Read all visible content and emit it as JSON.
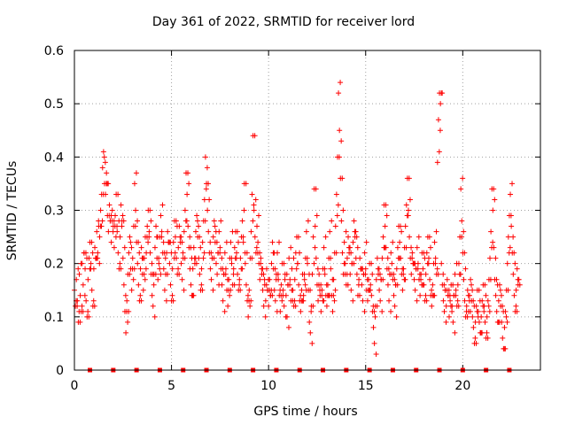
{
  "chart_data": {
    "type": "scatter",
    "title": "Day 361 of 2022, SRMTID for receiver lord",
    "xlabel": "GPS time / hours",
    "ylabel": "SRMTID / TECUs",
    "xlim": [
      0,
      24
    ],
    "ylim": [
      0,
      0.6
    ],
    "xticks": [
      0,
      5,
      10,
      15,
      20
    ],
    "xtick_labels": [
      "0",
      "5",
      "10",
      "15",
      "20"
    ],
    "yticks": [
      0,
      0.1,
      0.2,
      0.3,
      0.4,
      0.5,
      0.6
    ],
    "ytick_labels": [
      "0",
      "0.1",
      "0.2",
      "0.3",
      "0.4",
      "0.5",
      "0.6"
    ],
    "grid": true,
    "marker": "+",
    "color": "#ff0000",
    "zero_markers_x": [
      0.8,
      2.0,
      3.2,
      4.4,
      5.6,
      6.8,
      8.0,
      9.2,
      10.4,
      11.6,
      12.8,
      14.0,
      15.2,
      16.4,
      17.6,
      18.8,
      20.0,
      21.2,
      22.4
    ],
    "series": [
      {
        "name": "SRMTID",
        "x": [
          0.0,
          0.05,
          0.1,
          0.15,
          0.2,
          0.25,
          0.3,
          0.35,
          0.4,
          0.45,
          0.5,
          0.55,
          0.6,
          0.65,
          0.7,
          0.75,
          0.8,
          0.85,
          0.9,
          0.95,
          1.0,
          1.05,
          1.1,
          1.15,
          1.2,
          1.25,
          1.3,
          1.35,
          1.4,
          1.45,
          1.5,
          1.55,
          1.6,
          1.65,
          1.7,
          1.75,
          1.8,
          1.85,
          1.9,
          1.95,
          2.0,
          2.05,
          2.1,
          2.15,
          2.2,
          2.25,
          2.3,
          2.35,
          2.4,
          2.45,
          2.5,
          2.55,
          2.6,
          2.65,
          2.7,
          2.75,
          2.8,
          2.85,
          2.9,
          2.95,
          3.0,
          3.05,
          3.1,
          3.15,
          3.2,
          3.25,
          3.3,
          3.35,
          3.4,
          3.45,
          3.5,
          3.55,
          3.6,
          3.65,
          3.7,
          3.75,
          3.8,
          3.85,
          3.9,
          3.95,
          4.0,
          4.05,
          4.1,
          4.15,
          4.2,
          4.25,
          4.3,
          4.35,
          4.4,
          4.45,
          4.5,
          4.55,
          4.6,
          4.65,
          4.7,
          4.75,
          4.8,
          4.85,
          4.9,
          4.95,
          5.0,
          5.05,
          5.1,
          5.15,
          5.2,
          5.25,
          5.3,
          5.35,
          5.4,
          5.45,
          5.5,
          5.55,
          5.6,
          5.65,
          5.7,
          5.75,
          5.8,
          5.85,
          5.9,
          5.95,
          6.0,
          6.05,
          6.1,
          6.15,
          6.2,
          6.25,
          6.3,
          6.35,
          6.4,
          6.45,
          6.5,
          6.55,
          6.6,
          6.65,
          6.7,
          6.75,
          6.8,
          6.85,
          6.9,
          6.95,
          7.0,
          7.05,
          7.1,
          7.15,
          7.2,
          7.25,
          7.3,
          7.35,
          7.4,
          7.45,
          7.5,
          7.55,
          7.6,
          7.65,
          7.7,
          7.75,
          7.8,
          7.85,
          7.9,
          7.95,
          8.0,
          8.05,
          8.1,
          8.15,
          8.2,
          8.25,
          8.3,
          8.35,
          8.4,
          8.45,
          8.5,
          8.55,
          8.6,
          8.65,
          8.7,
          8.75,
          8.8,
          8.85,
          8.9,
          8.95,
          9.0,
          9.05,
          9.1,
          9.15,
          9.2,
          9.25,
          9.3,
          9.35,
          9.4,
          9.45,
          9.5,
          9.55,
          9.6,
          9.65,
          9.7,
          9.75,
          9.8,
          9.85,
          9.9,
          9.95,
          10.0,
          10.05,
          10.1,
          10.15,
          10.2,
          10.25,
          10.3,
          10.35,
          10.4,
          10.45,
          10.5,
          10.55,
          10.6,
          10.65,
          10.7,
          10.75,
          10.8,
          10.85,
          10.9,
          10.95,
          11.0,
          11.05,
          11.1,
          11.15,
          11.2,
          11.25,
          11.3,
          11.35,
          11.4,
          11.45,
          11.5,
          11.55,
          11.6,
          11.65,
          11.7,
          11.75,
          11.8,
          11.85,
          11.9,
          11.95,
          12.0,
          12.05,
          12.1,
          12.15,
          12.2,
          12.25,
          12.3,
          12.35,
          12.4,
          12.45,
          12.5,
          12.55,
          12.6,
          12.65,
          12.7,
          12.75,
          12.8,
          12.85,
          12.9,
          12.95,
          13.0,
          13.05,
          13.1,
          13.15,
          13.2,
          13.25,
          13.3,
          13.35,
          13.4,
          13.45,
          13.5,
          13.55,
          13.6,
          13.65,
          13.7,
          13.75,
          13.8,
          13.85,
          13.9,
          13.95,
          14.0,
          14.05,
          14.1,
          14.15,
          14.2,
          14.25,
          14.3,
          14.35,
          14.4,
          14.45,
          14.5,
          14.55,
          14.6,
          14.65,
          14.7,
          14.75,
          14.8,
          14.85,
          14.9,
          14.95,
          15.0,
          15.05,
          15.1,
          15.15,
          15.2,
          15.25,
          15.3,
          15.35,
          15.4,
          15.45,
          15.5,
          15.55,
          15.6,
          15.65,
          15.7,
          15.75,
          15.8,
          15.85,
          15.9,
          15.95,
          16.0,
          16.05,
          16.1,
          16.15,
          16.2,
          16.25,
          16.3,
          16.35,
          16.4,
          16.45,
          16.5,
          16.55,
          16.6,
          16.65,
          16.7,
          16.75,
          16.8,
          16.85,
          16.9,
          16.95,
          17.0,
          17.05,
          17.1,
          17.15,
          17.2,
          17.25,
          17.3,
          17.35,
          17.4,
          17.45,
          17.5,
          17.55,
          17.6,
          17.65,
          17.7,
          17.75,
          17.8,
          17.85,
          17.9,
          17.95,
          18.0,
          18.05,
          18.1,
          18.15,
          18.2,
          18.25,
          18.3,
          18.35,
          18.4,
          18.45,
          18.5,
          18.55,
          18.6,
          18.65,
          18.7,
          18.75,
          18.8,
          18.85,
          18.9,
          18.95,
          19.0,
          19.05,
          19.1,
          19.15,
          19.2,
          19.25,
          19.3,
          19.35,
          19.4,
          19.45,
          19.5,
          19.55,
          19.6,
          19.65,
          19.7,
          19.75,
          19.8,
          19.85,
          19.9,
          19.95,
          20.0,
          20.05,
          20.1,
          20.15,
          20.2,
          20.25,
          20.3,
          20.35,
          20.4,
          20.45,
          20.5,
          20.55,
          20.6,
          20.65,
          20.7,
          20.75,
          20.8,
          20.85,
          20.9,
          20.95,
          21.0,
          21.05,
          21.1,
          21.15,
          21.2,
          21.25,
          21.3,
          21.35,
          21.4,
          21.45,
          21.5,
          21.55,
          21.6,
          21.65,
          21.7,
          21.75,
          21.8,
          21.85,
          21.9,
          21.95,
          22.0,
          22.05,
          22.1,
          22.15,
          22.2,
          22.25,
          22.3,
          22.35,
          22.4,
          22.45,
          22.5,
          22.55,
          22.6,
          22.65,
          22.7,
          22.75,
          22.8,
          22.85
        ],
        "y": [
          0.15,
          0.12,
          0.17,
          0.13,
          0.09,
          0.18,
          0.14,
          0.11,
          0.2,
          0.16,
          0.22,
          0.19,
          0.13,
          0.1,
          0.17,
          0.21,
          0.24,
          0.2,
          0.15,
          0.12,
          0.19,
          0.23,
          0.21,
          0.26,
          0.22,
          0.27,
          0.25,
          0.3,
          0.33,
          0.38,
          0.41,
          0.35,
          0.33,
          0.37,
          0.29,
          0.26,
          0.31,
          0.28,
          0.24,
          0.3,
          0.27,
          0.23,
          0.29,
          0.33,
          0.26,
          0.22,
          0.19,
          0.25,
          0.31,
          0.28,
          0.21,
          0.16,
          0.11,
          0.07,
          0.13,
          0.18,
          0.22,
          0.25,
          0.19,
          0.15,
          0.21,
          0.27,
          0.35,
          0.3,
          0.24,
          0.2,
          0.16,
          0.13,
          0.19,
          0.23,
          0.18,
          0.15,
          0.21,
          0.25,
          0.22,
          0.27,
          0.3,
          0.26,
          0.22,
          0.18,
          0.14,
          0.12,
          0.18,
          0.23,
          0.27,
          0.21,
          0.17,
          0.2,
          0.25,
          0.29,
          0.26,
          0.22,
          0.19,
          0.15,
          0.18,
          0.22,
          0.26,
          0.24,
          0.2,
          0.16,
          0.13,
          0.19,
          0.24,
          0.28,
          0.25,
          0.21,
          0.18,
          0.23,
          0.27,
          0.24,
          0.2,
          0.17,
          0.21,
          0.26,
          0.3,
          0.37,
          0.33,
          0.27,
          0.23,
          0.19,
          0.16,
          0.14,
          0.19,
          0.23,
          0.2,
          0.26,
          0.29,
          0.25,
          0.21,
          0.18,
          0.15,
          0.19,
          0.24,
          0.28,
          0.32,
          0.4,
          0.35,
          0.3,
          0.26,
          0.22,
          0.19,
          0.17,
          0.21,
          0.25,
          0.28,
          0.24,
          0.2,
          0.18,
          0.22,
          0.26,
          0.23,
          0.19,
          0.16,
          0.13,
          0.18,
          0.22,
          0.19,
          0.15,
          0.12,
          0.17,
          0.21,
          0.24,
          0.2,
          0.16,
          0.19,
          0.23,
          0.26,
          0.22,
          0.18,
          0.15,
          0.17,
          0.21,
          0.25,
          0.28,
          0.24,
          0.35,
          0.2,
          0.16,
          0.13,
          0.1,
          0.15,
          0.21,
          0.26,
          0.33,
          0.44,
          0.3,
          0.25,
          0.22,
          0.27,
          0.24,
          0.2,
          0.17,
          0.21,
          0.18,
          0.15,
          0.12,
          0.16,
          0.13,
          0.19,
          0.15,
          0.12,
          0.17,
          0.14,
          0.2,
          0.24,
          0.19,
          0.15,
          0.13,
          0.18,
          0.22,
          0.17,
          0.14,
          0.11,
          0.16,
          0.2,
          0.15,
          0.12,
          0.18,
          0.14,
          0.1,
          0.16,
          0.21,
          0.17,
          0.13,
          0.19,
          0.15,
          0.12,
          0.17,
          0.22,
          0.25,
          0.2,
          0.16,
          0.13,
          0.11,
          0.15,
          0.18,
          0.14,
          0.17,
          0.21,
          0.26,
          0.2,
          0.15,
          0.09,
          0.07,
          0.12,
          0.18,
          0.25,
          0.34,
          0.27,
          0.21,
          0.16,
          0.13,
          0.18,
          0.14,
          0.11,
          0.15,
          0.19,
          0.23,
          0.18,
          0.14,
          0.12,
          0.16,
          0.21,
          0.26,
          0.19,
          0.14,
          0.11,
          0.17,
          0.22,
          0.27,
          0.33,
          0.4,
          0.52,
          0.45,
          0.36,
          0.28,
          0.22,
          0.18,
          0.24,
          0.2,
          0.16,
          0.21,
          0.25,
          0.22,
          0.18,
          0.15,
          0.2,
          0.24,
          0.28,
          0.25,
          0.21,
          0.18,
          0.14,
          0.17,
          0.21,
          0.19,
          0.16,
          0.13,
          0.18,
          0.22,
          0.19,
          0.15,
          0.13,
          0.17,
          0.2,
          0.16,
          0.14,
          0.11,
          0.08,
          0.05,
          0.12,
          0.17,
          0.21,
          0.18,
          0.15,
          0.13,
          0.17,
          0.21,
          0.25,
          0.31,
          0.27,
          0.23,
          0.19,
          0.16,
          0.13,
          0.18,
          0.22,
          0.2,
          0.17,
          0.14,
          0.12,
          0.16,
          0.19,
          0.23,
          0.27,
          0.24,
          0.21,
          0.18,
          0.15,
          0.19,
          0.23,
          0.27,
          0.31,
          0.36,
          0.3,
          0.25,
          0.21,
          0.18,
          0.22,
          0.2,
          0.17,
          0.15,
          0.19,
          0.23,
          0.2,
          0.17,
          0.14,
          0.18,
          0.22,
          0.19,
          0.16,
          0.13,
          0.18,
          0.22,
          0.25,
          0.21,
          0.17,
          0.14,
          0.12,
          0.16,
          0.2,
          0.24,
          0.21,
          0.18,
          0.39,
          0.47,
          0.52,
          0.5,
          0.2,
          0.16,
          0.13,
          0.11,
          0.15,
          0.12,
          0.17,
          0.14,
          0.1,
          0.13,
          0.16,
          0.12,
          0.09,
          0.14,
          0.18,
          0.15,
          0.12,
          0.16,
          0.2,
          0.25,
          0.34,
          0.28,
          0.22,
          0.17,
          0.13,
          0.1,
          0.12,
          0.15,
          0.11,
          0.14,
          0.17,
          0.13,
          0.1,
          0.08,
          0.05,
          0.09,
          0.12,
          0.15,
          0.11,
          0.09,
          0.07,
          0.1,
          0.13,
          0.16,
          0.12,
          0.09,
          0.06,
          0.1,
          0.13,
          0.17,
          0.21,
          0.26,
          0.34,
          0.3,
          0.23,
          0.17,
          0.14,
          0.11,
          0.09,
          0.13,
          0.16,
          0.12,
          0.09,
          0.06,
          0.04,
          0.08,
          0.11,
          0.15,
          0.2,
          0.25,
          0.29,
          0.33,
          0.27,
          0.22,
          0.18,
          0.14,
          0.11,
          0.15,
          0.19,
          0.16
        ]
      }
    ]
  }
}
